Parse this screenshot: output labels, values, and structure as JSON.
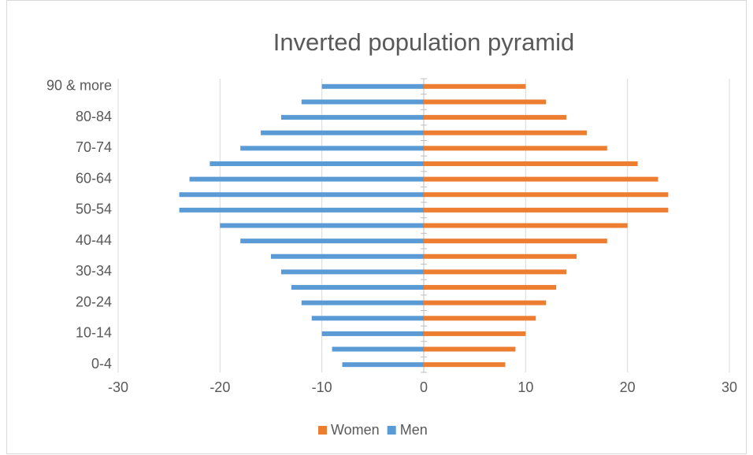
{
  "chart_data": {
    "type": "bar",
    "orientation": "horizontal",
    "title": "Inverted population pyramid",
    "categories": [
      "0-4",
      null,
      "10-14",
      null,
      "20-24",
      null,
      "30-34",
      null,
      "40-44",
      null,
      "50-54",
      null,
      "60-64",
      null,
      "70-74",
      null,
      "80-84",
      null,
      "90 & more"
    ],
    "series": [
      {
        "name": "Women",
        "color": "#ed7d31",
        "values": [
          8,
          9,
          10,
          11,
          12,
          13,
          14,
          15,
          18,
          20,
          24,
          24,
          23,
          21,
          18,
          16,
          14,
          12,
          10
        ]
      },
      {
        "name": "Men",
        "color": "#5b9bd5",
        "values": [
          -8,
          -9,
          -10,
          -11,
          -12,
          -13,
          -14,
          -15,
          -18,
          -20,
          -24,
          -24,
          -23,
          -21,
          -18,
          -16,
          -14,
          -12,
          -10
        ]
      }
    ],
    "xlim": [
      -30,
      30
    ],
    "xticks": [
      -30,
      -20,
      -10,
      0,
      10,
      20,
      30
    ],
    "grid": true,
    "legend": "bottom"
  }
}
